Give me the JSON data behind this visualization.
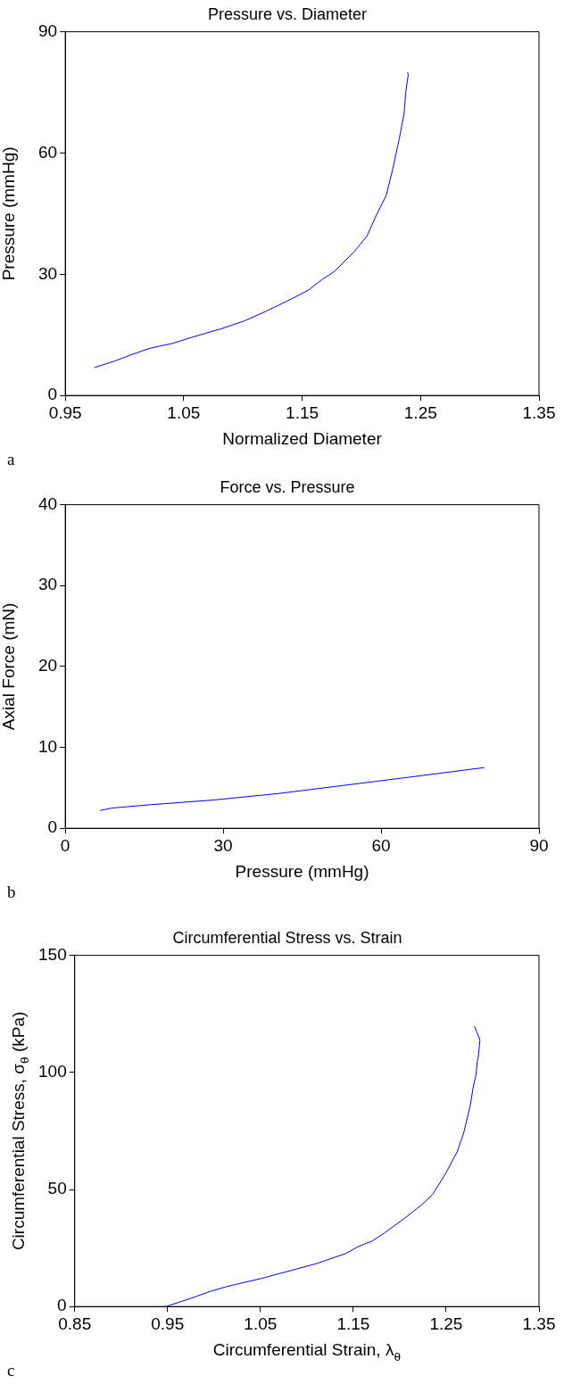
{
  "chart_data": [
    {
      "type": "line",
      "title": "Pressure vs. Diameter",
      "xlabel": "Normalized Diameter",
      "ylabel": "Pressure (mmHg)",
      "annotations": [
        "a"
      ],
      "xlim": [
        0.95,
        1.35
      ],
      "xticks": [
        0.95,
        1.05,
        1.15,
        1.25,
        1.35
      ],
      "ylim": [
        0,
        90
      ],
      "yticks": [
        0,
        30,
        60,
        90
      ],
      "grid": false,
      "legend": false,
      "marker": "none",
      "line_style": "solid",
      "series": [
        {
          "color": "#0000ff",
          "x": [
            0.9746,
            0.9915,
            1.005,
            1.0216,
            1.0407,
            1.057,
            1.0817,
            1.1008,
            1.12,
            1.1418,
            1.1555,
            1.1664,
            1.1773,
            1.1937,
            1.2047,
            1.2128,
            1.221,
            1.2265,
            1.232,
            1.2361,
            1.2374,
            1.2396,
            1.239
          ],
          "values": [
            6.9,
            8.5,
            10.0,
            11.7,
            12.9,
            14.4,
            16.5,
            18.4,
            20.9,
            24.0,
            26.1,
            28.6,
            30.7,
            35.5,
            39.4,
            44.7,
            49.5,
            56.0,
            63.5,
            69.8,
            74.8,
            79.4,
            80.0
          ]
        }
      ]
    },
    {
      "type": "line",
      "title": "Force vs. Pressure",
      "xlabel": "Pressure (mmHg)",
      "ylabel": "Axial Force (mN)",
      "annotations": [
        "b"
      ],
      "xlim": [
        0,
        90
      ],
      "xticks": [
        0,
        30,
        60,
        90
      ],
      "ylim": [
        0,
        40
      ],
      "yticks": [
        0,
        10,
        20,
        30,
        40
      ],
      "grid": false,
      "legend": false,
      "marker": "none",
      "line_style": "solid",
      "series": [
        {
          "color": "#0000ff",
          "x": [
            6.6,
            8.9,
            16.0,
            28.3,
            40.6,
            52.9,
            65.2,
            79.6
          ],
          "values": [
            2.2,
            2.5,
            2.9,
            3.5,
            4.3,
            5.3,
            6.3,
            7.5
          ]
        }
      ]
    },
    {
      "type": "line",
      "title": "Circumferential Stress vs. Strain",
      "xlabel": "Circumferential Strain, λ$_{θ}$",
      "ylabel": "Circumferential Stress, σ$_{θ}$ (kPa)",
      "annotations": [
        "c"
      ],
      "xlim": [
        0.85,
        1.35
      ],
      "xticks": [
        0.85,
        0.95,
        1.05,
        1.15,
        1.25,
        1.35
      ],
      "ylim": [
        0,
        150
      ],
      "yticks": [
        0,
        50,
        100,
        150
      ],
      "grid": false,
      "legend": false,
      "marker": "none",
      "line_style": "solid",
      "series": [
        {
          "color": "#0000ff",
          "x": [
            0.9482,
            0.9757,
            0.9969,
            1.0145,
            1.0499,
            1.0887,
            1.1099,
            1.1417,
            1.1558,
            1.17,
            1.1841,
            1.2053,
            1.2229,
            1.2353,
            1.2494,
            1.2618,
            1.2688,
            1.2758,
            1.2794,
            1.2822,
            1.2836,
            1.2846,
            1.2864,
            1.2829,
            1.2804
          ],
          "values": [
            0,
            3.6,
            6.6,
            8.6,
            11.9,
            16.0,
            18.3,
            22.6,
            25.7,
            27.9,
            31.6,
            37.7,
            43.2,
            47.8,
            56.8,
            66.0,
            74.0,
            85.6,
            94.2,
            99.1,
            105.0,
            106.5,
            113.9,
            117.3,
            119.8
          ]
        }
      ]
    }
  ]
}
